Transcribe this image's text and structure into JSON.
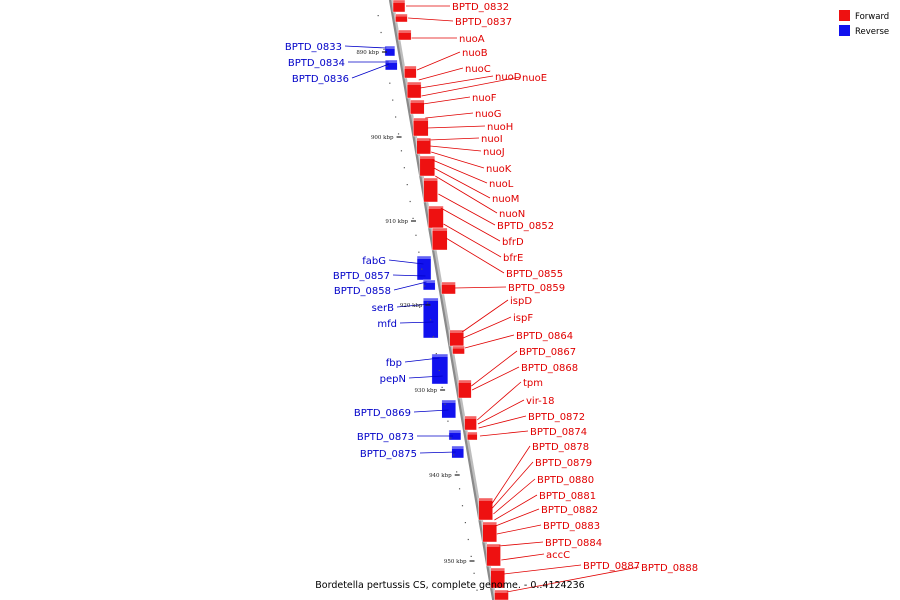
{
  "title": "Bordetella pertussis CS, complete genome. - 0..4124236",
  "legend": [
    {
      "label": "Forward",
      "color": "#ee1111"
    },
    {
      "label": "Reverse",
      "color": "#1111ee"
    }
  ],
  "colors": {
    "forward": "#e00000",
    "reverse": "#0000c8",
    "forward_fill": "#ee1111",
    "reverse_fill": "#1111ee",
    "backbone": "#8a8a8a"
  },
  "ticks": [
    "890 kbp",
    "900 kbp",
    "910 kbp",
    "920 kbp",
    "930 kbp",
    "940 kbp",
    "950 kbp"
  ],
  "forward_genes": [
    "BPTD_0832",
    "BPTD_0837",
    "nuoA",
    "nuoB",
    "nuoC",
    "nuoD",
    "nuoE",
    "nuoF",
    "nuoG",
    "nuoH",
    "nuoI",
    "nuoJ",
    "nuoK",
    "nuoL",
    "nuoM",
    "nuoN",
    "BPTD_0852",
    "bfrD",
    "bfrE",
    "BPTD_0855",
    "BPTD_0859",
    "ispD",
    "ispF",
    "BPTD_0864",
    "BPTD_0867",
    "BPTD_0868",
    "tpm",
    "vir-18",
    "BPTD_0872",
    "BPTD_0874",
    "BPTD_0878",
    "BPTD_0879",
    "BPTD_0880",
    "BPTD_0881",
    "BPTD_0882",
    "BPTD_0883",
    "BPTD_0884",
    "accC",
    "BPTD_0887",
    "BPTD_0888"
  ],
  "reverse_genes": [
    "BPTD_0833",
    "BPTD_0834",
    "BPTD_0836",
    "fabG",
    "BPTD_0857",
    "BPTD_0858",
    "serB",
    "mfd",
    "fbp",
    "pepN",
    "BPTD_0869",
    "BPTD_0873",
    "BPTD_0875"
  ]
}
